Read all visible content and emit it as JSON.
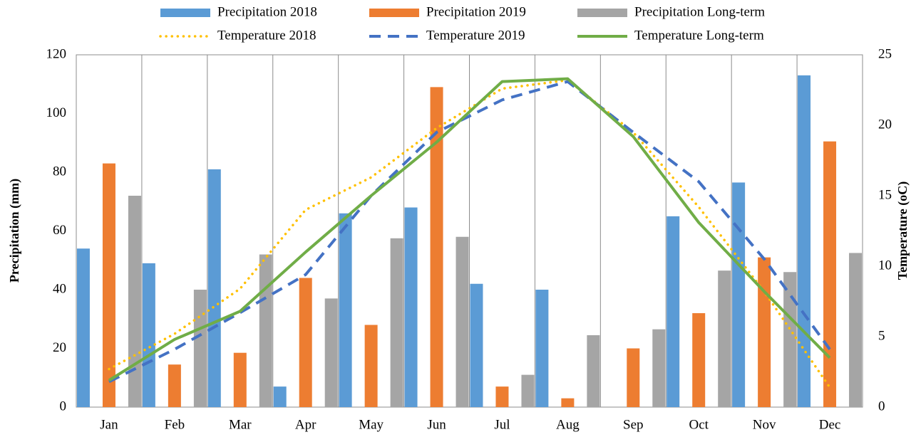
{
  "chart_data": {
    "type": "bar",
    "categories": [
      "Jan",
      "Feb",
      "Mar",
      "Apr",
      "May",
      "Jun",
      "Jul",
      "Aug",
      "Sep",
      "Oct",
      "Nov",
      "Dec"
    ],
    "y_label": "Precipitation (mm)",
    "y2_label": "Temperature (oC)",
    "ylim": [
      0,
      120
    ],
    "yticks": [
      0,
      20,
      40,
      60,
      80,
      100,
      120
    ],
    "y2lim": [
      0,
      25
    ],
    "y2ticks": [
      0,
      5,
      10,
      15,
      20,
      25
    ],
    "grid": "vertical",
    "series": [
      {
        "name": "Precipitation 2018",
        "type": "bar",
        "color": "#5b9bd5",
        "values": [
          54,
          49,
          81,
          7,
          66,
          68,
          42,
          40,
          null,
          65,
          76.5,
          113
        ]
      },
      {
        "name": "Precipitation 2019",
        "type": "bar",
        "color": "#ed7d31",
        "values": [
          83,
          14.5,
          18.5,
          44,
          28,
          109,
          7,
          3,
          20,
          32,
          51,
          90.5
        ]
      },
      {
        "name": "Precipitation Long-term",
        "type": "bar",
        "color": "#a5a5a5",
        "values": [
          72,
          40,
          52,
          37,
          57.5,
          58,
          11,
          24.5,
          26.5,
          46.5,
          46,
          52.5
        ]
      },
      {
        "name": "Temperature 2018",
        "type": "line",
        "style": "dotted",
        "axis": "y2",
        "color": "#ffc000",
        "values": [
          2.7,
          5.2,
          8.4,
          14,
          16.3,
          19.8,
          22.6,
          23.2,
          19.5,
          14.2,
          8.2,
          1.4
        ]
      },
      {
        "name": "Temperature 2019",
        "type": "line",
        "style": "dashed",
        "axis": "y2",
        "color": "#4472c4",
        "values": [
          1.8,
          4.1,
          6.7,
          9.4,
          15,
          19.5,
          21.8,
          23.1,
          19.5,
          16,
          10.5,
          4.1
        ]
      },
      {
        "name": "Temperature Long-term",
        "type": "line",
        "style": "solid",
        "axis": "y2",
        "color": "#70ad47",
        "values": [
          1.9,
          4.8,
          6.8,
          11,
          15,
          18.8,
          23.1,
          23.3,
          19.2,
          13.1,
          8.2,
          3.5
        ]
      }
    ]
  }
}
